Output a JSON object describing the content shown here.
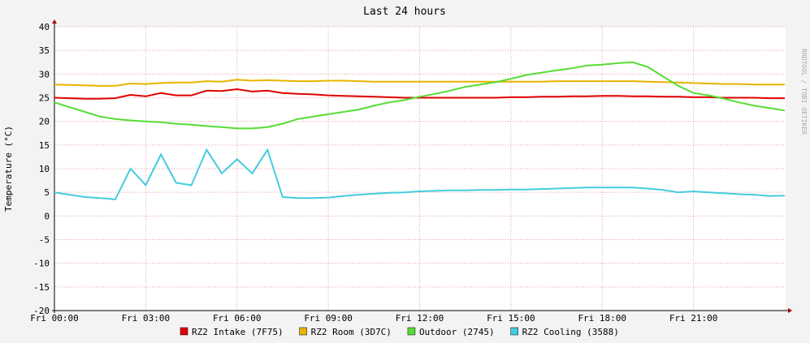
{
  "chart_data": {
    "type": "line",
    "title": "Last 24 hours",
    "y_label": "Temperature (°C)",
    "watermark": "RRDTOOL / TOBI OETIKER",
    "x": [
      0,
      0.5,
      1,
      1.5,
      2,
      2.5,
      3,
      3.5,
      4,
      4.5,
      5,
      5.5,
      6,
      6.5,
      7,
      7.5,
      8,
      8.5,
      9,
      9.5,
      10,
      10.5,
      11,
      11.5,
      12,
      12.5,
      13,
      13.5,
      14,
      14.5,
      15,
      15.5,
      16,
      16.5,
      17,
      17.5,
      18,
      18.5,
      19,
      19.5,
      20,
      20.5,
      21,
      21.5,
      22,
      22.5,
      23,
      23.5,
      24
    ],
    "xlim": [
      0,
      24
    ],
    "xticks": [
      {
        "value": 0,
        "label": "Fri 00:00"
      },
      {
        "value": 3,
        "label": "Fri 03:00"
      },
      {
        "value": 6,
        "label": "Fri 06:00"
      },
      {
        "value": 9,
        "label": "Fri 09:00"
      },
      {
        "value": 12,
        "label": "Fri 12:00"
      },
      {
        "value": 15,
        "label": "Fri 15:00"
      },
      {
        "value": 18,
        "label": "Fri 18:00"
      },
      {
        "value": 21,
        "label": "Fri 21:00"
      }
    ],
    "ylim": [
      -20,
      40
    ],
    "yticks": [
      -20,
      -15,
      -10,
      -5,
      0,
      5,
      10,
      15,
      20,
      25,
      30,
      35,
      40
    ],
    "grid": true,
    "series": [
      {
        "name": "RZ2 Intake (7F75)",
        "color": "#e00000",
        "values": [
          25,
          24.9,
          24.8,
          24.8,
          24.9,
          25.6,
          25.3,
          26,
          25.5,
          25.5,
          26.5,
          26.4,
          26.8,
          26.3,
          26.5,
          26,
          25.8,
          25.7,
          25.5,
          25.4,
          25.3,
          25.2,
          25.1,
          25,
          25,
          25,
          25,
          25,
          25,
          25,
          25.1,
          25.1,
          25.2,
          25.2,
          25.3,
          25.3,
          25.4,
          25.4,
          25.3,
          25.3,
          25.2,
          25.2,
          25.1,
          25.1,
          25,
          25,
          25,
          24.9,
          24.9
        ]
      },
      {
        "name": "RZ2 Room (3D7C)",
        "color": "#e8b400",
        "values": [
          27.8,
          27.7,
          27.6,
          27.5,
          27.5,
          28,
          27.9,
          28.1,
          28.2,
          28.2,
          28.5,
          28.4,
          28.8,
          28.6,
          28.7,
          28.6,
          28.5,
          28.5,
          28.6,
          28.6,
          28.5,
          28.4,
          28.4,
          28.4,
          28.4,
          28.4,
          28.4,
          28.4,
          28.4,
          28.4,
          28.4,
          28.4,
          28.4,
          28.5,
          28.5,
          28.5,
          28.5,
          28.5,
          28.5,
          28.4,
          28.3,
          28.2,
          28.1,
          28,
          27.9,
          27.9,
          27.8,
          27.8,
          27.8
        ]
      },
      {
        "name": "Outdoor (2745)",
        "color": "#55dd33",
        "values": [
          24,
          23,
          22,
          21,
          20.5,
          20.2,
          20,
          19.8,
          19.5,
          19.3,
          19,
          18.8,
          18.5,
          18.5,
          18.8,
          19.5,
          20.5,
          21,
          21.5,
          22,
          22.5,
          23.3,
          24,
          24.5,
          25.2,
          25.8,
          26.5,
          27.3,
          27.8,
          28.3,
          29,
          29.8,
          30.3,
          30.8,
          31.2,
          31.8,
          32,
          32.3,
          32.5,
          31.5,
          29.5,
          27.5,
          26,
          25.5,
          24.8,
          24,
          23.3,
          22.8,
          22.3
        ]
      },
      {
        "name": "RZ2 Cooling (3588)",
        "color": "#44ccdd",
        "values": [
          5,
          4.5,
          4,
          3.8,
          3.5,
          10,
          6.5,
          13,
          7,
          6.5,
          14,
          9,
          12,
          9,
          14,
          4,
          3.8,
          3.8,
          3.9,
          4.2,
          4.5,
          4.7,
          4.9,
          5,
          5.2,
          5.3,
          5.4,
          5.4,
          5.5,
          5.5,
          5.6,
          5.6,
          5.7,
          5.8,
          5.9,
          6,
          6,
          6,
          6,
          5.8,
          5.5,
          5,
          5.2,
          5,
          4.8,
          4.6,
          4.5,
          4.2,
          4.3
        ]
      }
    ]
  }
}
